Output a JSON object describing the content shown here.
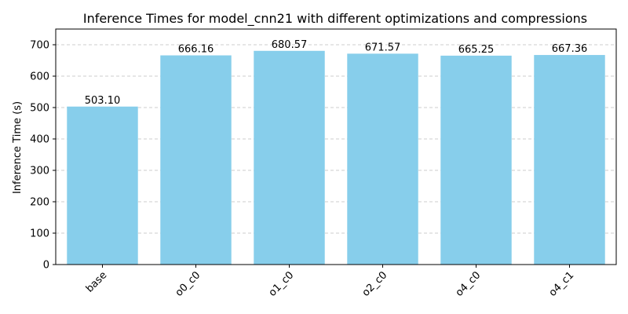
{
  "chart_data": {
    "type": "bar",
    "title": "Inference Times for model_cnn21 with different optimizations and compressions",
    "xlabel": "",
    "ylabel": "Inference Time (s)",
    "categories": [
      "base",
      "o0_c0",
      "o1_c0",
      "o2_c0",
      "o4_c0",
      "o4_c1"
    ],
    "values": [
      503.1,
      666.16,
      680.57,
      671.57,
      665.25,
      667.36
    ],
    "value_labels": [
      "503.10",
      "666.16",
      "680.57",
      "671.57",
      "665.25",
      "667.36"
    ],
    "ylim": [
      0,
      750
    ],
    "yticks": [
      0,
      100,
      200,
      300,
      400,
      500,
      600,
      700
    ],
    "ytick_labels": [
      "0",
      "100",
      "200",
      "300",
      "400",
      "500",
      "600",
      "700"
    ],
    "grid": "y-axis dashed",
    "bar_color": "#87CEEB",
    "legend": "none"
  }
}
